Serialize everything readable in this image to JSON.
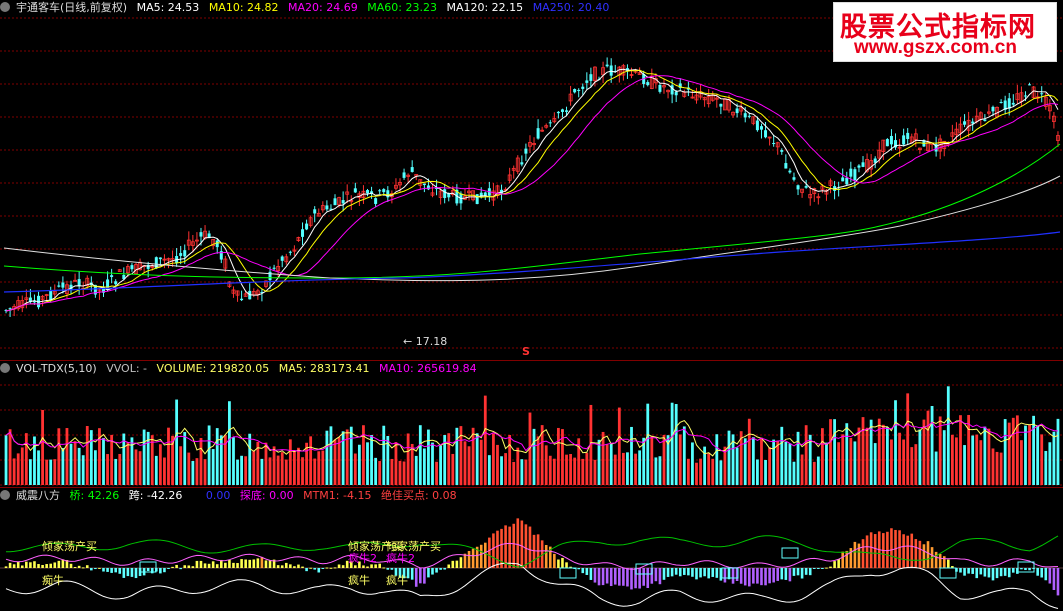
{
  "main": {
    "title": "宇通客车(日线,前复权)",
    "ma": [
      {
        "label": "MA5: 24.53",
        "color": "#ffffff"
      },
      {
        "label": "MA10: 24.82",
        "color": "#ffff00"
      },
      {
        "label": "MA20: 24.69",
        "color": "#ff00ff"
      },
      {
        "label": "MA60: 23.23",
        "color": "#00ff00"
      },
      {
        "label": "MA120: 22.15",
        "color": "#ffffff"
      },
      {
        "label": "MA250: 20.40",
        "color": "#3030ff"
      }
    ],
    "low_label": "17.18",
    "marker": "S"
  },
  "volume": {
    "title": "VOL-TDX(5,10)",
    "items": [
      {
        "label": "VVOL: -",
        "color": "#c0c0c0"
      },
      {
        "label": "VOLUME: 219820.05",
        "color": "#ffff66"
      },
      {
        "label": "MA5: 283173.41",
        "color": "#ffff66"
      },
      {
        "label": "MA10: 265619.84",
        "color": "#ff00ff"
      }
    ]
  },
  "indicator": {
    "title": "威震八方",
    "items": [
      {
        "label": "桥: 42.26",
        "color": "#00ff00"
      },
      {
        "label": "跨: -42.26",
        "color": "#ffffff"
      },
      {
        "label": "0.00",
        "color": "#3030ff"
      },
      {
        "label": "探底: 0.00",
        "color": "#ff00ff"
      },
      {
        "label": "MTM1: -4.15",
        "color": "#ff4040"
      },
      {
        "label": "绝佳买点: 0.08",
        "color": "#ff4040"
      }
    ],
    "annotations": [
      "倾家荡产买",
      "痴牛",
      "倾家荡产买",
      "倾家荡产买",
      "疯牛2",
      "疯牛2",
      "疯牛",
      "疯牛"
    ]
  },
  "watermark": {
    "line1": "股票公式指标网",
    "line2": "www.gszx.com.cn"
  },
  "colors": {
    "up": "#ff3232",
    "down": "#54ffff",
    "grid": "#800000"
  },
  "chart_data": {
    "type": "line",
    "note_series": [
      "MA5",
      "MA10",
      "MA20",
      "MA60",
      "MA120",
      "MA250"
    ],
    "ylim": [
      17,
      32
    ],
    "min_price": 17.18
  }
}
